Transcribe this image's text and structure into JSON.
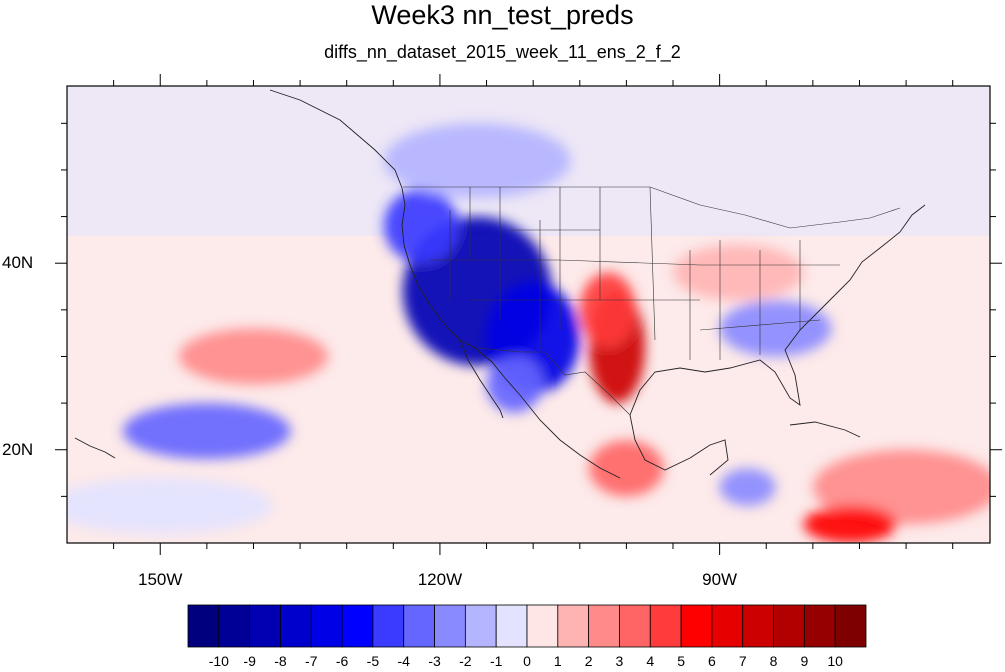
{
  "title": "Week3 nn_test_preds",
  "subtitle": "diffs_nn_dataset_2015_week_11_ens_2_f_2",
  "map": {
    "lon_range": [
      -160,
      -61
    ],
    "lat_range": [
      10,
      59
    ],
    "x_ticks": [
      {
        "value": -150,
        "label": "150W"
      },
      {
        "value": -120,
        "label": "120W"
      },
      {
        "value": -90,
        "label": "90W"
      }
    ],
    "y_ticks": [
      {
        "value": 40,
        "label": "40N"
      },
      {
        "value": 20,
        "label": "20N"
      }
    ]
  },
  "colorbar": {
    "levels": [
      -10,
      -9,
      -8,
      -7,
      -6,
      -5,
      -4,
      -3,
      -2,
      -1,
      0,
      1,
      2,
      3,
      4,
      5,
      6,
      7,
      8,
      9,
      10
    ],
    "labels": [
      "-10",
      "-9",
      "-8",
      "-7",
      "-6",
      "-5",
      "-4",
      "-3",
      "-2",
      "-1",
      "0",
      "1",
      "2",
      "3",
      "4",
      "5",
      "6",
      "7",
      "8",
      "9",
      "10"
    ],
    "colors": [
      "#00007f",
      "#000096",
      "#0000b2",
      "#0000cc",
      "#0000e6",
      "#0000ff",
      "#3b3bff",
      "#6565ff",
      "#8a8aff",
      "#b4b4ff",
      "#e3e3ff",
      "#ffe6e6",
      "#ffb4b4",
      "#ff8a8a",
      "#ff6565",
      "#ff3b3b",
      "#ff0000",
      "#e60000",
      "#cc0000",
      "#b20000",
      "#960000",
      "#7f0000"
    ]
  },
  "field_blobs": [
    {
      "lon": -116,
      "lat": 37,
      "rlon": 8,
      "rlat": 8,
      "value": -9
    },
    {
      "lon": -110,
      "lat": 32,
      "rlon": 5,
      "rlat": 6,
      "value": -7
    },
    {
      "lon": -122,
      "lat": 44,
      "rlon": 4,
      "rlat": 4,
      "value": -5
    },
    {
      "lon": -101,
      "lat": 31,
      "rlon": 3,
      "rlat": 6,
      "value": 7
    },
    {
      "lon": -102,
      "lat": 35,
      "rlon": 3,
      "rlat": 4,
      "value": 4
    },
    {
      "lon": -145,
      "lat": 22,
      "rlon": 9,
      "rlat": 3,
      "value": -4
    },
    {
      "lon": -84,
      "lat": 33,
      "rlon": 6,
      "rlat": 3,
      "value": -3
    },
    {
      "lon": -88,
      "lat": 39,
      "rlon": 7,
      "rlat": 3,
      "value": 1
    },
    {
      "lon": -140,
      "lat": 30,
      "rlon": 8,
      "rlat": 3,
      "value": 2
    },
    {
      "lon": -100,
      "lat": 18,
      "rlon": 4,
      "rlat": 3,
      "value": 3
    },
    {
      "lon": -70,
      "lat": 16,
      "rlon": 10,
      "rlat": 4,
      "value": 2
    },
    {
      "lon": -76,
      "lat": 12,
      "rlon": 5,
      "rlat": 2,
      "value": 5
    },
    {
      "lon": -116,
      "lat": 51,
      "rlon": 10,
      "rlat": 4,
      "value": -2
    },
    {
      "lon": -150,
      "lat": 14,
      "rlon": 12,
      "rlat": 3,
      "value": -1
    },
    {
      "lon": -87,
      "lat": 16,
      "rlon": 3,
      "rlat": 2,
      "value": -3
    },
    {
      "lon": -112,
      "lat": 27,
      "rlon": 3,
      "rlat": 3,
      "value": -4
    }
  ]
}
